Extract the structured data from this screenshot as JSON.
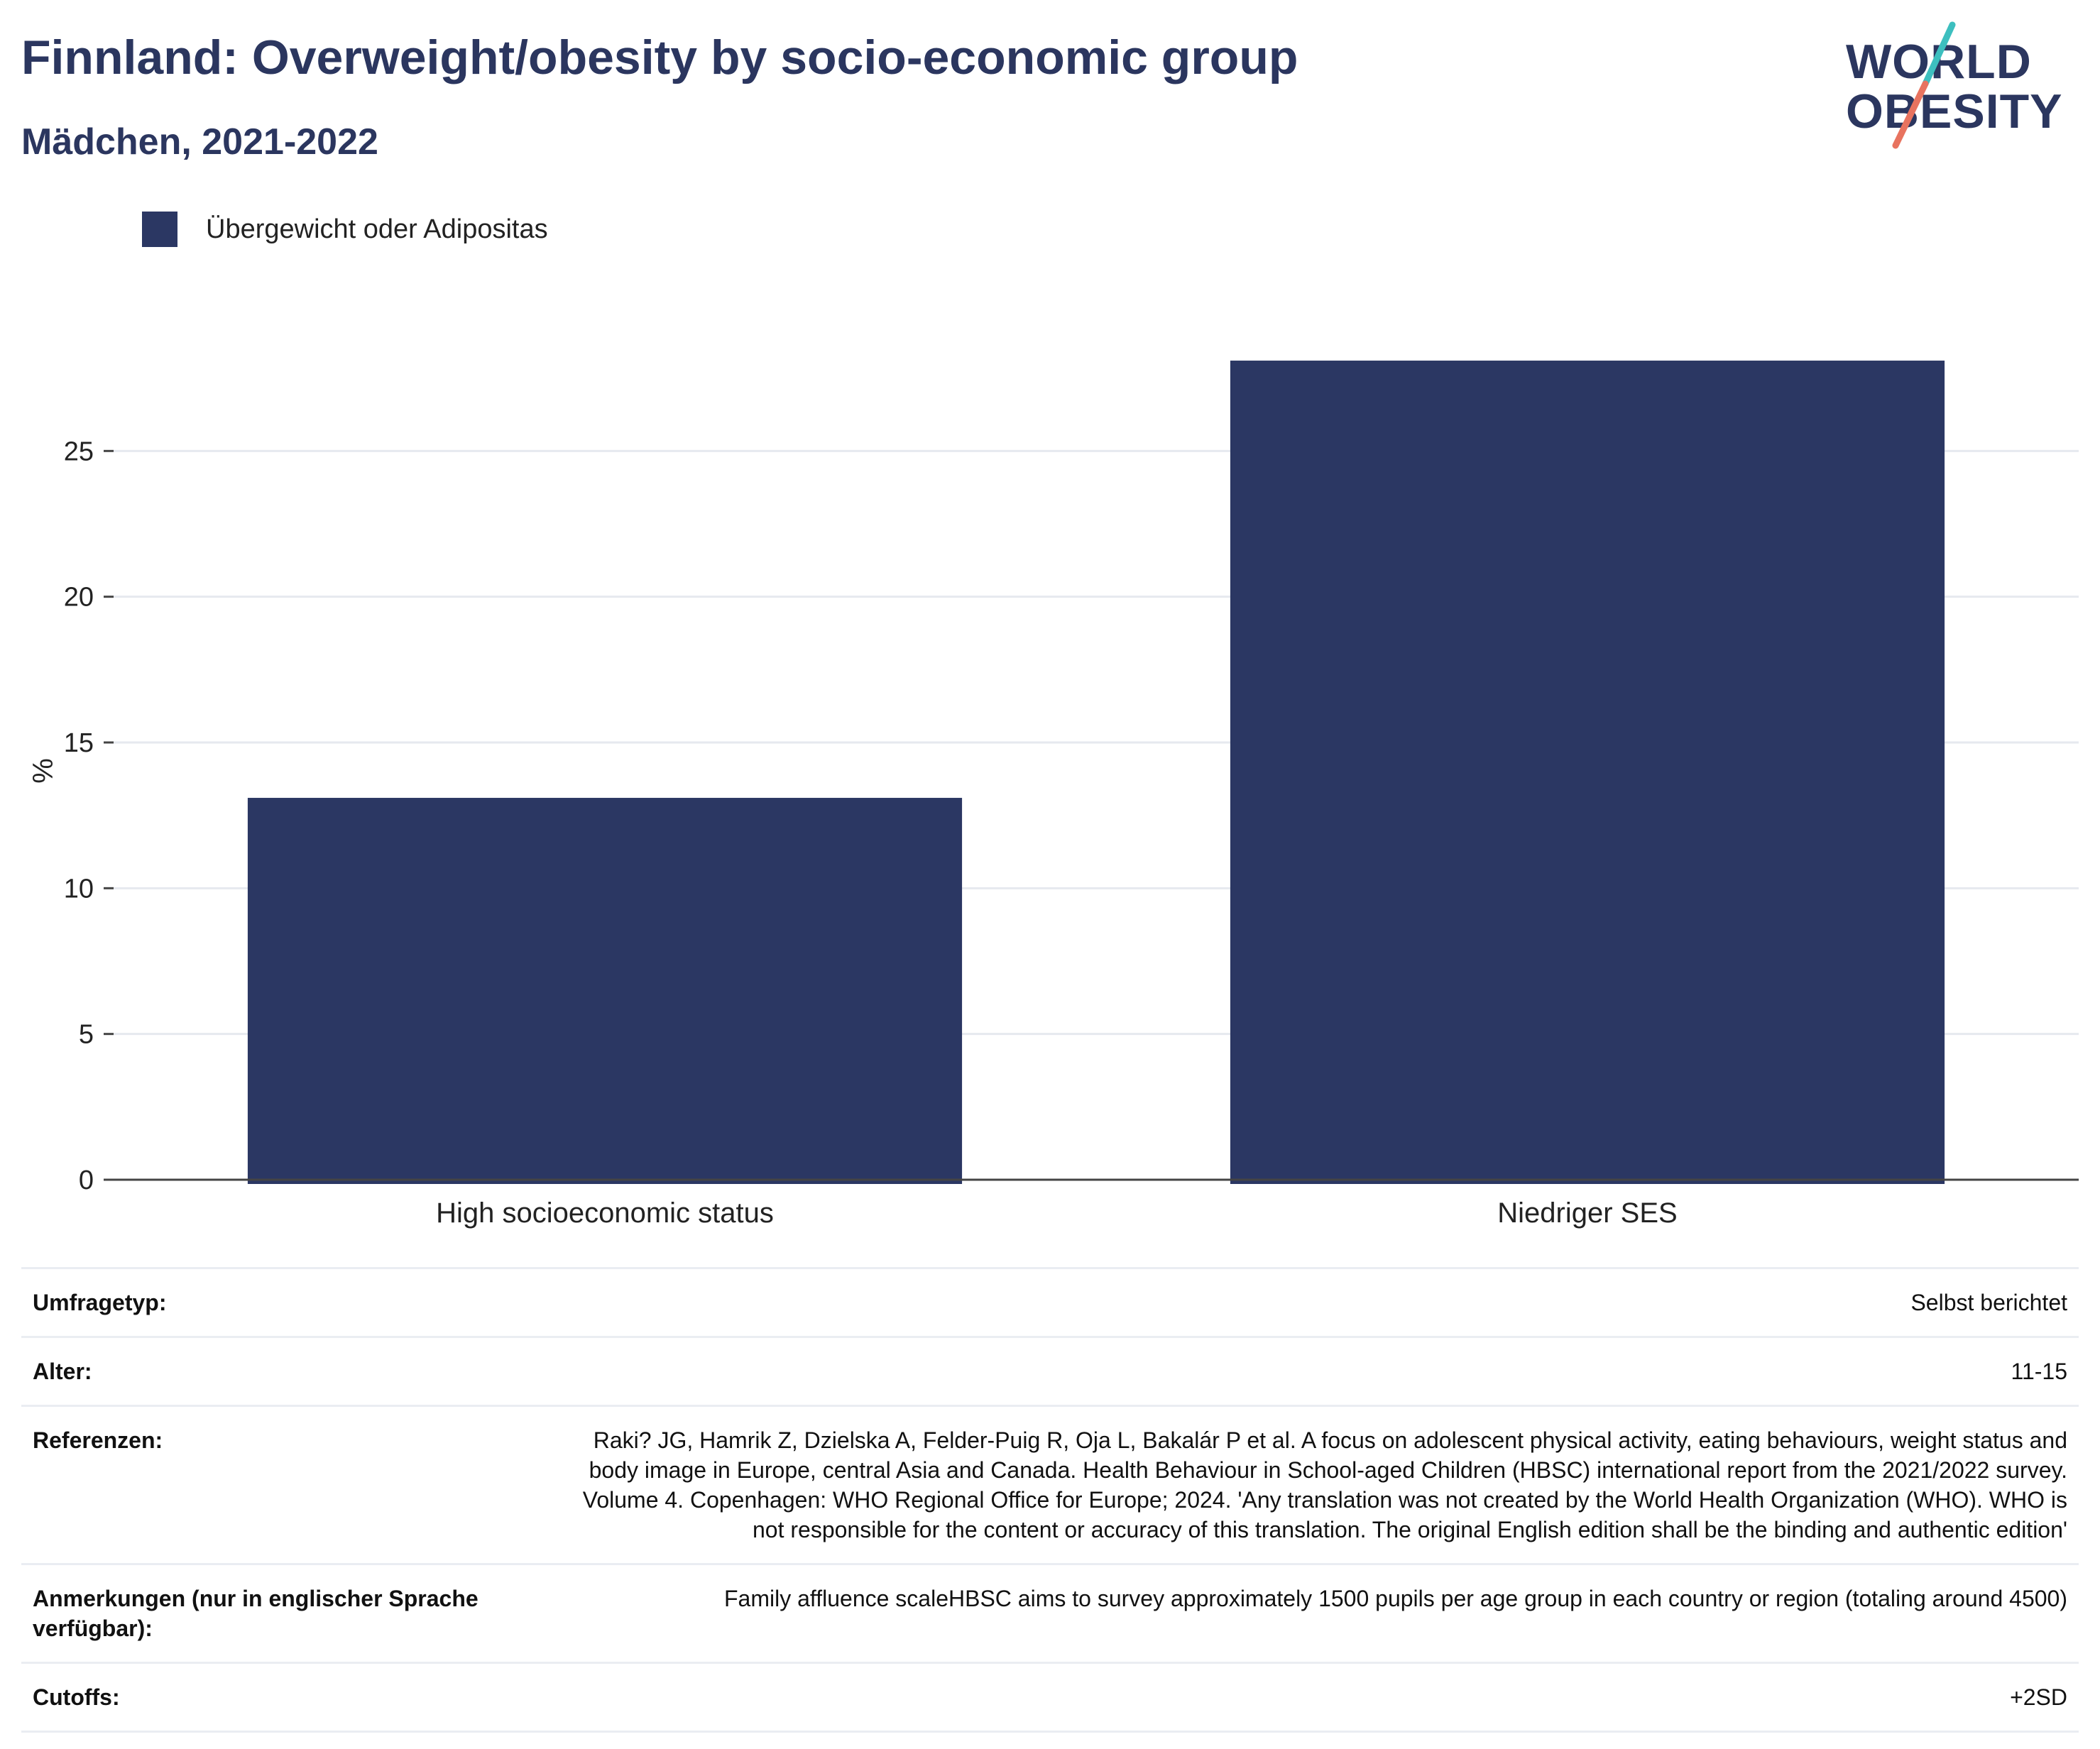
{
  "header": {
    "title": "Finnland: Overweight/obesity by socio-economic group",
    "subtitle": "Mädchen, 2021-2022"
  },
  "logo": {
    "line1": "WORLD",
    "line2": "OBESITY",
    "accent_teal": "#3dbfbf",
    "accent_coral": "#e8735f"
  },
  "legend": {
    "label": "Übergewicht oder Adipositas",
    "color": "#2b3763"
  },
  "chart_data": {
    "type": "bar",
    "categories": [
      "High socioeconomic status",
      "Niedriger SES"
    ],
    "series": [
      {
        "name": "Übergewicht oder Adipositas",
        "values": [
          13.1,
          28.1
        ],
        "color": "#2b3763"
      }
    ],
    "ylabel": "%",
    "xlabel": "",
    "ylim": [
      0,
      30
    ],
    "yticks": [
      0,
      5,
      10,
      15,
      20,
      25
    ],
    "grid": true,
    "legend_position": "top-left"
  },
  "info": [
    {
      "key": "Umfragetyp:",
      "value": "Selbst berichtet"
    },
    {
      "key": "Alter:",
      "value": "11-15"
    },
    {
      "key": "Referenzen:",
      "value": "Raki? JG, Hamrik Z, Dzielska A, Felder-Puig R, Oja L, Bakalár P et al. A focus on adolescent physical activity, eating behaviours, weight status and body image in Europe, central Asia and Canada. Health Behaviour in School-aged Children (HBSC) international report from the 2021/2022 survey. Volume 4. Copenhagen: WHO Regional Office for Europe; 2024. 'Any translation was not created by the World Health Organization (WHO). WHO is not responsible for the content or accuracy of this translation. The original English edition shall be the binding and authentic edition'"
    },
    {
      "key": "Anmerkungen (nur in englischer Sprache verfügbar):",
      "value": "Family affluence scaleHBSC aims to survey approximately 1500 pupils per age group in each country or region (totaling around 4500)"
    },
    {
      "key": "Cutoffs:",
      "value": "+2SD"
    }
  ]
}
